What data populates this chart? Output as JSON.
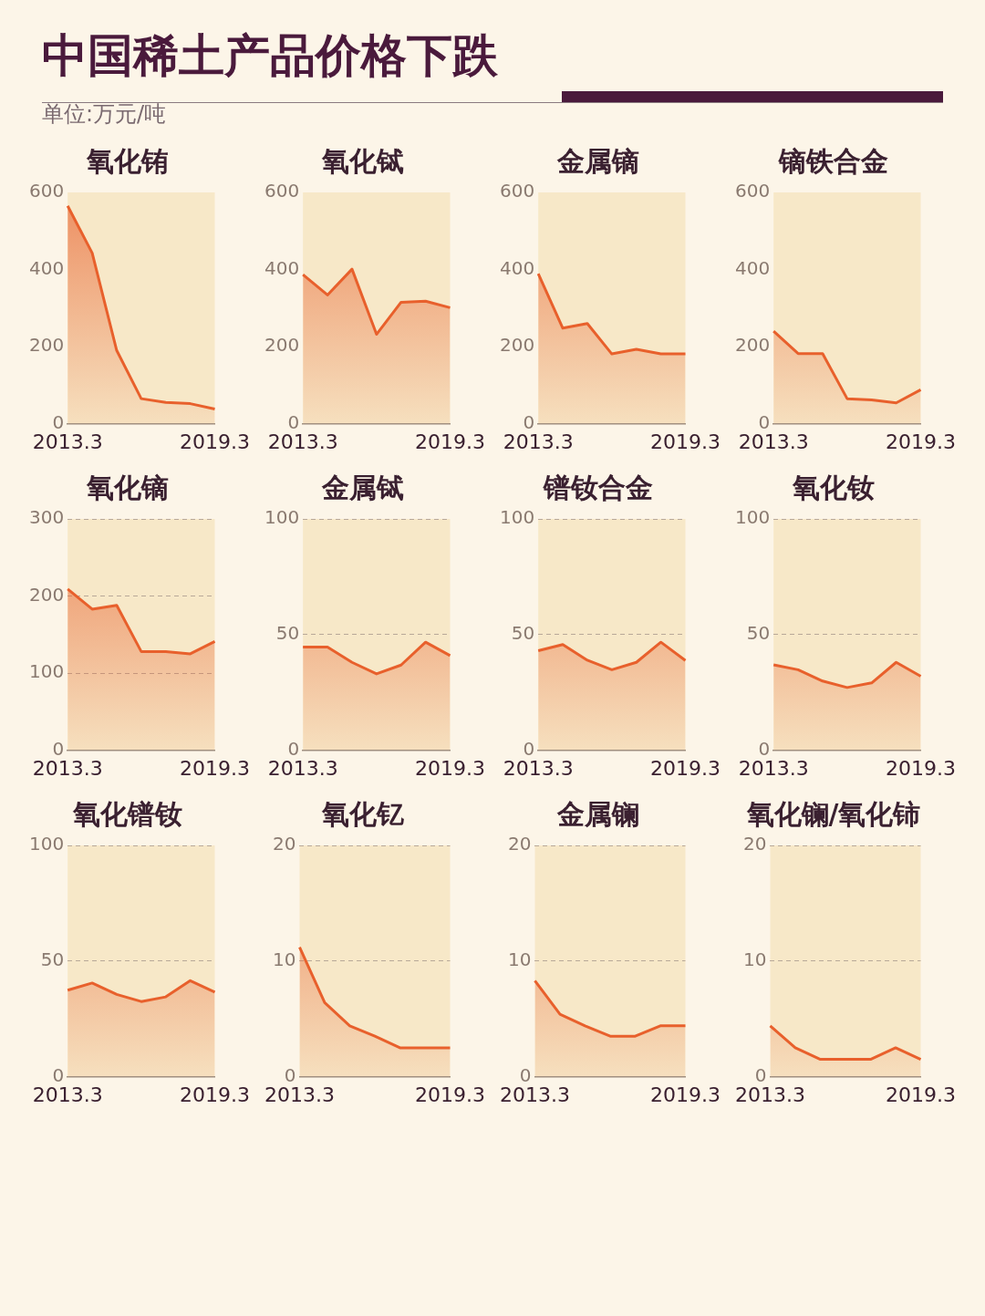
{
  "chart_data": [
    {
      "type": "other",
      "title": "中国稀土产品价格下跌",
      "subtitle": "单位:万元/吨"
    },
    {
      "type": "area",
      "title": "氧化铕",
      "categories": [
        "2013.3",
        null,
        null,
        null,
        null,
        null,
        "2019.3"
      ],
      "values": [
        565,
        443,
        190,
        65,
        55,
        52,
        38
      ],
      "color": "#e8602c",
      "ylim": [
        0,
        600
      ],
      "yticks": [
        0,
        200,
        400,
        600
      ]
    },
    {
      "type": "area",
      "title": "氧化铽",
      "categories": [
        "2013.3",
        null,
        null,
        null,
        null,
        null,
        "2019.3"
      ],
      "values": [
        387,
        334,
        401,
        232,
        315,
        318,
        301
      ],
      "color": "#e8602c",
      "ylim": [
        0,
        600
      ],
      "yticks": [
        0,
        200,
        400,
        600
      ]
    },
    {
      "type": "area",
      "title": "金属镝",
      "categories": [
        "2013.3",
        null,
        null,
        null,
        null,
        null,
        "2019.3"
      ],
      "values": [
        389,
        248,
        260,
        181,
        193,
        181,
        181
      ],
      "color": "#e8602c",
      "ylim": [
        0,
        600
      ],
      "yticks": [
        0,
        200,
        400,
        600
      ]
    },
    {
      "type": "area",
      "title": "镝铁合金",
      "categories": [
        "2013.3",
        null,
        null,
        null,
        null,
        null,
        "2019.3"
      ],
      "values": [
        240,
        182,
        182,
        65,
        62,
        54,
        88
      ],
      "color": "#e8602c",
      "ylim": [
        0,
        600
      ],
      "yticks": [
        0,
        200,
        400,
        600
      ]
    },
    {
      "type": "area",
      "title": "氧化镝",
      "categories": [
        "2013.3",
        null,
        null,
        null,
        null,
        null,
        "2019.3"
      ],
      "values": [
        209,
        183,
        188,
        128,
        128,
        125,
        141
      ],
      "color": "#e8602c",
      "ylim": [
        0,
        300
      ],
      "yticks": [
        0,
        100,
        200,
        300
      ],
      "grid": "y"
    },
    {
      "type": "area",
      "title": "金属铽",
      "categories": [
        "2013.3",
        null,
        null,
        null,
        null,
        null,
        "2019.3"
      ],
      "values": [
        44.6,
        44.6,
        38,
        33,
        36.8,
        46.7,
        40.9
      ],
      "color": "#e8602c",
      "ylim": [
        0,
        100
      ],
      "yticks": [
        0,
        50,
        100
      ],
      "grid": "y"
    },
    {
      "type": "area",
      "title": "镨钕合金",
      "categories": [
        "2013.3",
        null,
        null,
        null,
        null,
        null,
        "2019.3"
      ],
      "values": [
        43,
        45.7,
        38.9,
        34.8,
        38,
        46.7,
        38.8
      ],
      "color": "#e8602c",
      "ylim": [
        0,
        100
      ],
      "yticks": [
        0,
        50,
        100
      ],
      "grid": "y"
    },
    {
      "type": "area",
      "title": "氧化钕",
      "categories": [
        "2013.3",
        null,
        null,
        null,
        null,
        null,
        "2019.3"
      ],
      "values": [
        36.9,
        34.8,
        29.9,
        27.1,
        29.1,
        38,
        32
      ],
      "color": "#e8602c",
      "ylim": [
        0,
        100
      ],
      "yticks": [
        0,
        50,
        100
      ],
      "grid": "y"
    },
    {
      "type": "area",
      "title": "氧化镨钕",
      "categories": [
        "2013.3",
        null,
        null,
        null,
        null,
        null,
        "2019.3"
      ],
      "values": [
        37.4,
        40.5,
        35.6,
        32.5,
        34.5,
        41.5,
        36.6
      ],
      "color": "#e8602c",
      "ylim": [
        0,
        100
      ],
      "yticks": [
        0,
        50,
        100
      ],
      "grid": "y"
    },
    {
      "type": "area",
      "title": "氧化钇",
      "categories": [
        "2013.3",
        null,
        null,
        null,
        null,
        null,
        "2019.3"
      ],
      "values": [
        11.2,
        6.4,
        4.4,
        3.5,
        2.5,
        2.5,
        2.5
      ],
      "color": "#e8602c",
      "ylim": [
        0,
        20
      ],
      "yticks": [
        0,
        10,
        20
      ],
      "grid": "y"
    },
    {
      "type": "area",
      "title": "金属镧",
      "categories": [
        "2013.3",
        null,
        null,
        null,
        null,
        null,
        "2019.3"
      ],
      "values": [
        8.3,
        5.4,
        4.4,
        3.5,
        3.5,
        4.4,
        4.4
      ],
      "color": "#e8602c",
      "ylim": [
        0,
        20
      ],
      "yticks": [
        0,
        10,
        20
      ],
      "grid": "y"
    },
    {
      "type": "area",
      "title": "氧化镧/氧化铈",
      "categories": [
        "2013.3",
        null,
        null,
        null,
        null,
        null,
        "2019.3"
      ],
      "values": [
        4.4,
        2.5,
        1.5,
        1.5,
        1.5,
        2.5,
        1.5
      ],
      "color": "#e8602c",
      "ylim": [
        0,
        20
      ],
      "yticks": [
        0,
        10,
        20
      ],
      "grid": "y"
    }
  ]
}
